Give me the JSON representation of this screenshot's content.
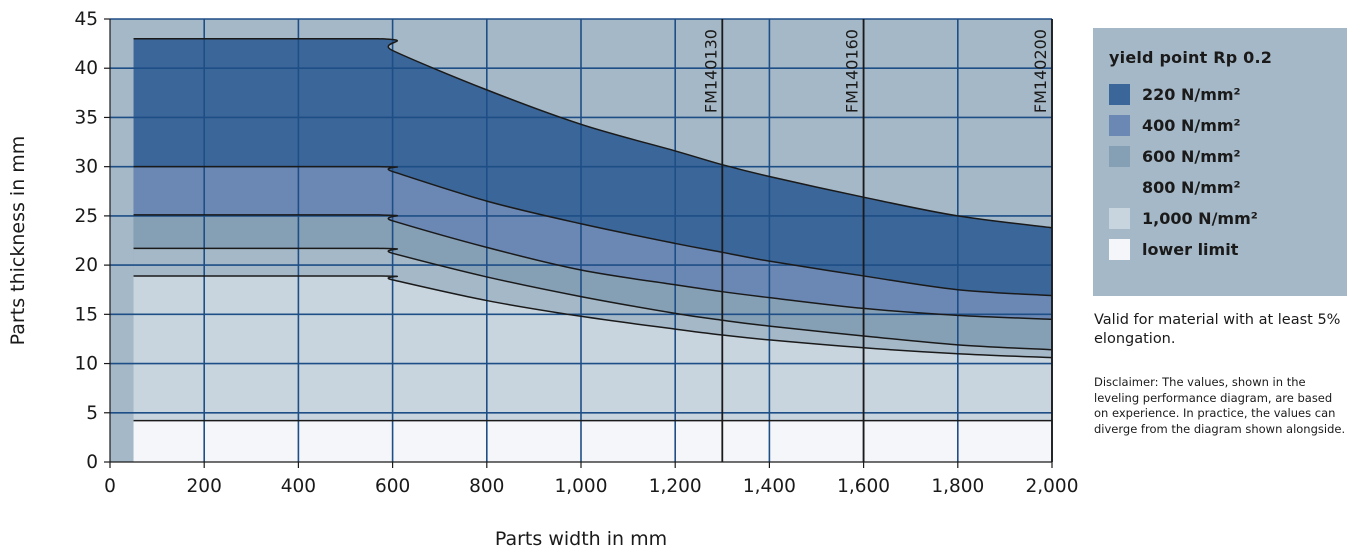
{
  "chart_data": {
    "type": "area",
    "xlabel": "Parts width in mm",
    "ylabel": "Parts thickness in mm",
    "xlim": [
      0,
      2000
    ],
    "ylim": [
      0,
      45
    ],
    "xticks": [
      0,
      200,
      400,
      600,
      800,
      1000,
      1200,
      1400,
      1600,
      1800,
      2000
    ],
    "xtick_labels": [
      "0",
      "200",
      "400",
      "600",
      "800",
      "1,000",
      "1,200",
      "1,400",
      "1,600",
      "1,800",
      "2,000"
    ],
    "yticks": [
      0,
      5,
      10,
      15,
      20,
      25,
      30,
      35,
      40,
      45
    ],
    "ytick_labels": [
      "0",
      "5",
      "10",
      "15",
      "20",
      "25",
      "30",
      "35",
      "40",
      "45"
    ],
    "grid": true,
    "x": [
      50,
      570,
      600,
      800,
      1000,
      1200,
      1300,
      1400,
      1600,
      1800,
      2000
    ],
    "series": [
      {
        "name": "220 N/mm²",
        "color": "#3b6699",
        "values": [
          43,
          43,
          41.8,
          37.8,
          34.3,
          31.6,
          30.2,
          29,
          26.9,
          25,
          23.8
        ]
      },
      {
        "name": "400 N/mm²",
        "color": "#6b88b5",
        "values": [
          30,
          30,
          29.5,
          26.5,
          24.2,
          22.2,
          21.3,
          20.4,
          18.9,
          17.5,
          16.9
        ]
      },
      {
        "name": "600 N/mm²",
        "color": "#859fb4",
        "values": [
          25.1,
          25.1,
          24.5,
          21.8,
          19.5,
          18,
          17.3,
          16.7,
          15.6,
          14.9,
          14.5
        ]
      },
      {
        "name": "800 N/mm²",
        "color": "#a5b8c7",
        "values": [
          21.7,
          21.7,
          21.2,
          18.8,
          16.8,
          15.1,
          14.4,
          13.8,
          12.8,
          11.9,
          11.4
        ]
      },
      {
        "name": "1,000 N/mm²",
        "color": "#c9d5de",
        "values": [
          18.9,
          18.9,
          18.5,
          16.4,
          14.8,
          13.5,
          12.9,
          12.4,
          11.6,
          11,
          10.6
        ]
      },
      {
        "name": "lower limit",
        "color": "#f4f6fa",
        "values": [
          4.2,
          4.2,
          4.2,
          4.2,
          4.2,
          4.2,
          4.2,
          4.2,
          4.2,
          4.2,
          4.2
        ]
      }
    ],
    "vertical_lines": [
      {
        "x": 1300,
        "label": "FM140130"
      },
      {
        "x": 1600,
        "label": "FM140160"
      },
      {
        "x": 2000,
        "label": "FM140200"
      }
    ],
    "legend": {
      "title": "yield point Rp 0.2",
      "position": "right"
    }
  },
  "note": "Valid for material with at least 5% elongation.",
  "disclaimer": "Disclaimer: The values, shown in the leveling performance diagram, are based on experience. In practice, the values can diverge from the diagram shown alongside."
}
